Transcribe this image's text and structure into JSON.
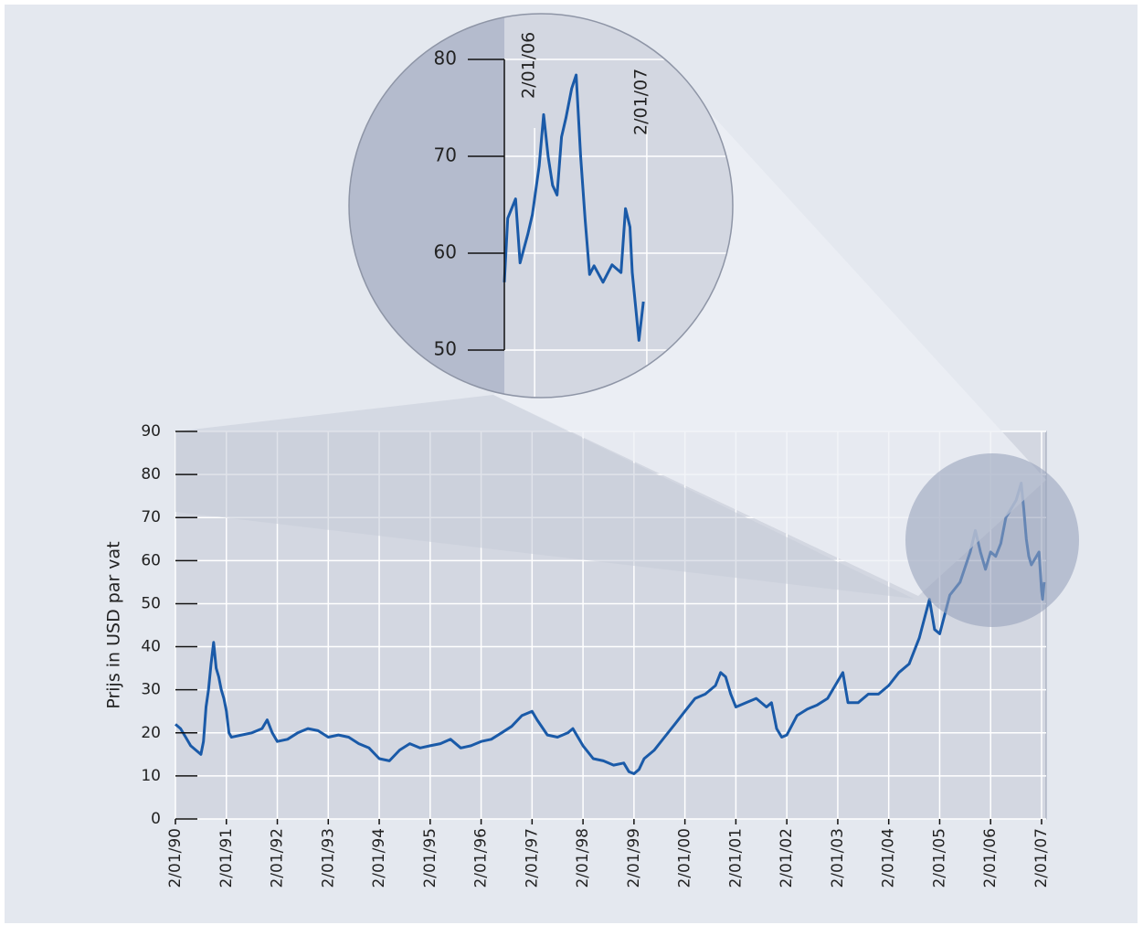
{
  "chart_data": [
    {
      "type": "line",
      "y_label": "Prijs in USD par vat",
      "x": [
        1990.0,
        1990.1,
        1990.2,
        1990.3,
        1990.4,
        1990.5,
        1990.55,
        1990.6,
        1990.65,
        1990.7,
        1990.75,
        1990.8,
        1990.85,
        1990.9,
        1990.95,
        1991.0,
        1991.05,
        1991.1,
        1991.3,
        1991.5,
        1991.7,
        1991.8,
        1991.9,
        1992.0,
        1992.2,
        1992.4,
        1992.6,
        1992.8,
        1993.0,
        1993.2,
        1993.4,
        1993.6,
        1993.8,
        1994.0,
        1994.2,
        1994.4,
        1994.6,
        1994.8,
        1995.0,
        1995.2,
        1995.4,
        1995.6,
        1995.8,
        1996.0,
        1996.2,
        1996.4,
        1996.6,
        1996.8,
        1997.0,
        1997.1,
        1997.3,
        1997.5,
        1997.7,
        1997.8,
        1998.0,
        1998.2,
        1998.4,
        1998.6,
        1998.8,
        1998.9,
        1999.0,
        1999.1,
        1999.2,
        1999.4,
        1999.6,
        1999.8,
        2000.0,
        2000.2,
        2000.4,
        2000.6,
        2000.7,
        2000.8,
        2000.9,
        2001.0,
        2001.2,
        2001.4,
        2001.6,
        2001.7,
        2001.8,
        2001.9,
        2002.0,
        2002.2,
        2002.4,
        2002.6,
        2002.8,
        2003.0,
        2003.1,
        2003.2,
        2003.4,
        2003.6,
        2003.8,
        2004.0,
        2004.2,
        2004.4,
        2004.6,
        2004.8,
        2004.9,
        2005.0,
        2005.2,
        2005.4,
        2005.6,
        2005.7,
        2005.8,
        2005.9,
        2006.0,
        2006.1,
        2006.2,
        2006.3,
        2006.4,
        2006.5,
        2006.6,
        2006.65,
        2006.7,
        2006.75,
        2006.8,
        2006.9,
        2006.95,
        2007.0,
        2007.02,
        2007.05
      ],
      "series": [
        {
          "color": "#1a5aa8",
          "values": [
            22,
            21,
            19,
            17,
            16,
            15,
            18,
            26,
            30,
            36,
            41,
            35,
            33,
            30,
            28,
            25,
            20,
            19,
            19.5,
            20,
            21,
            23,
            20,
            18,
            18.5,
            20,
            21,
            20.5,
            19,
            19.5,
            19,
            17.5,
            16.5,
            14,
            13.5,
            16,
            17.5,
            16.5,
            17,
            17.5,
            18.5,
            16.5,
            17,
            18,
            18.5,
            20,
            21.5,
            24,
            25,
            23,
            19.5,
            19,
            20,
            21,
            17,
            14,
            13.5,
            12.5,
            13,
            11,
            10.5,
            11.5,
            14,
            16,
            19,
            22,
            25,
            28,
            29,
            31,
            34,
            33,
            29,
            26,
            27,
            28,
            26,
            27,
            21,
            19,
            19.5,
            24,
            25.5,
            26.5,
            28,
            32,
            34,
            27,
            27,
            29,
            29,
            31,
            34,
            36,
            42,
            51,
            44,
            43,
            52,
            55,
            62,
            67,
            62,
            58,
            62,
            61,
            64,
            70,
            72,
            74,
            78,
            72,
            65,
            61,
            59,
            61,
            62,
            53,
            51,
            55
          ]
        }
      ],
      "xlim": [
        1990,
        2007.09
      ],
      "ylim": [
        0,
        90
      ],
      "yticks": [
        0,
        10,
        20,
        30,
        40,
        50,
        60,
        70,
        80,
        90
      ],
      "xticks": [
        {
          "value": 1990,
          "label": "2/01/90"
        },
        {
          "value": 1991,
          "label": "2/01/91"
        },
        {
          "value": 1992,
          "label": "2/01/92"
        },
        {
          "value": 1993,
          "label": "2/01/93"
        },
        {
          "value": 1994,
          "label": "2/01/94"
        },
        {
          "value": 1995,
          "label": "2/01/95"
        },
        {
          "value": 1996,
          "label": "2/01/96"
        },
        {
          "value": 1997,
          "label": "2/01/97"
        },
        {
          "value": 1998,
          "label": "2/01/98"
        },
        {
          "value": 1999,
          "label": "2/01/99"
        },
        {
          "value": 2000,
          "label": "2/01/00"
        },
        {
          "value": 2001,
          "label": "2/01/01"
        },
        {
          "value": 2002,
          "label": "2/01/02"
        },
        {
          "value": 2003,
          "label": "2/01/03"
        },
        {
          "value": 2004,
          "label": "2/01/04"
        },
        {
          "value": 2005,
          "label": "2/01/05"
        },
        {
          "value": 2006,
          "label": "2/01/06"
        },
        {
          "value": 2007,
          "label": "2/01/07"
        }
      ],
      "grid": true
    },
    {
      "type": "line",
      "x": [
        2005.73,
        2005.76,
        2005.83,
        2005.87,
        2005.94,
        2005.98,
        2006.04,
        2006.08,
        2006.12,
        2006.16,
        2006.2,
        2006.24,
        2006.28,
        2006.33,
        2006.37,
        2006.41,
        2006.45,
        2006.49,
        2006.53,
        2006.61,
        2006.69,
        2006.77,
        2006.81,
        2006.85,
        2006.87,
        2006.93,
        2006.97
      ],
      "series": [
        {
          "color": "#1a5aa8",
          "values": [
            57,
            63.6,
            65.6,
            59,
            62,
            64,
            69,
            74.3,
            70,
            67,
            66,
            72,
            74,
            77,
            78.4,
            70,
            63.5,
            57.8,
            58.7,
            57,
            58.8,
            58,
            64.6,
            62.7,
            58,
            51,
            55
          ]
        }
      ],
      "xlim": [
        2005.73,
        2007.75
      ],
      "ylim": [
        50,
        80
      ],
      "yticks": [
        50,
        60,
        70,
        80
      ],
      "xticks": [
        {
          "value": 2006,
          "label": "2/01/06"
        },
        {
          "value": 2007,
          "label": "2/01/07"
        }
      ],
      "grid": true
    }
  ]
}
